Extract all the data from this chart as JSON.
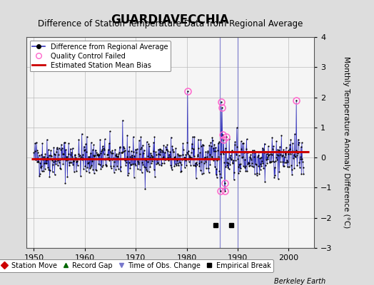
{
  "title": "GUARDIAVECCHIA",
  "subtitle": "Difference of Station Temperature Data from Regional Average",
  "ylabel": "Monthly Temperature Anomaly Difference (°C)",
  "xlabel_note": "Berkeley Earth",
  "xlim": [
    1948.5,
    2005
  ],
  "ylim": [
    -3,
    4
  ],
  "yticks": [
    -3,
    -2,
    -1,
    0,
    1,
    2,
    3,
    4
  ],
  "xticks": [
    1950,
    1960,
    1970,
    1980,
    1990,
    2000
  ],
  "background_color": "#dddddd",
  "plot_bg_color": "#f5f5f5",
  "seed": 42,
  "start_year": 1950,
  "end_year": 2003,
  "bias_segment1_start": 1949.5,
  "bias_segment1_end": 1986.5,
  "bias_segment1_value": -0.05,
  "bias_segment2_start": 1986.5,
  "bias_segment2_end": 2004,
  "bias_segment2_value": 0.2,
  "obs_change_times": [
    1986.5,
    1990.0
  ],
  "empirical_break_times": [
    1985.7,
    1988.7
  ],
  "empirical_break_y": -2.25,
  "line_color": "#3333bb",
  "dot_color": "#000000",
  "qc_color": "#ff66cc",
  "bias_color": "#cc0000",
  "obs_change_color": "#7777cc",
  "legend_bg": "#ffffff",
  "title_fontsize": 12,
  "subtitle_fontsize": 8.5,
  "tick_fontsize": 8,
  "ylabel_fontsize": 7.5
}
